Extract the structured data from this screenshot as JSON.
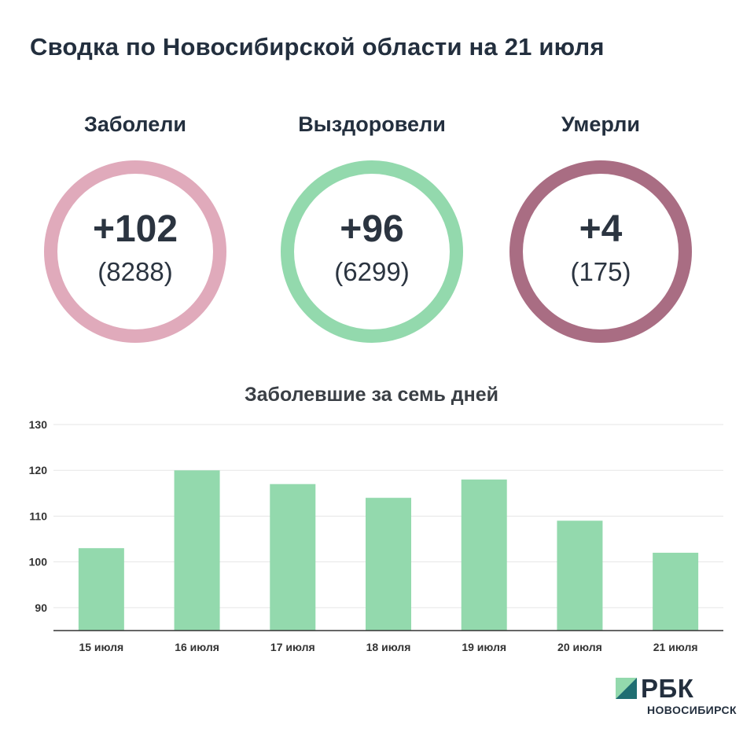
{
  "header": {
    "title": "Сводка по Новосибирской области на 21 июля"
  },
  "stats": [
    {
      "label": "Заболели",
      "delta": "+102",
      "total": "(8288)",
      "color": "#e0aabb"
    },
    {
      "label": "Выздоровели",
      "delta": "+96",
      "total": "(6299)",
      "color": "#93d9ad"
    },
    {
      "label": "Умерли",
      "delta": "+4",
      "total": "(175)",
      "color": "#a96d83"
    }
  ],
  "chart_data": {
    "type": "bar",
    "title": "Заболевшие за семь дней",
    "categories": [
      "15 июля",
      "16 июля",
      "17 июля",
      "18 июля",
      "19 июля",
      "20 июля",
      "21 июля"
    ],
    "values": [
      103,
      120,
      117,
      114,
      118,
      109,
      102
    ],
    "ylim": [
      85,
      130
    ],
    "yticks": [
      90,
      100,
      110,
      120,
      130
    ],
    "bar_color": "#93d9ad",
    "grid": true
  },
  "logo": {
    "word": "РБК",
    "sub": "НОВОСИБИРСК"
  }
}
